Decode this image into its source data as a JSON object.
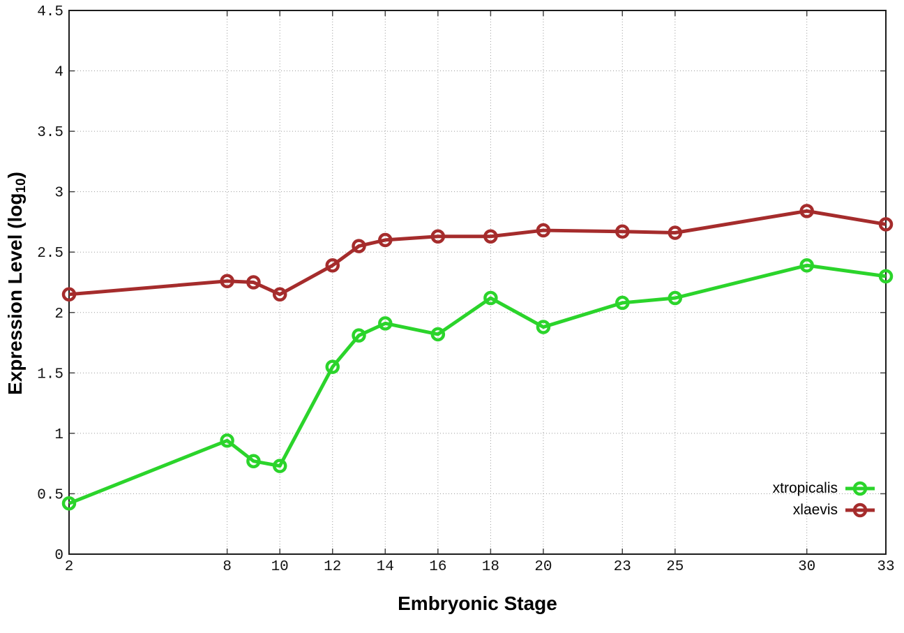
{
  "chart_data": {
    "type": "line",
    "title": "",
    "xlabel": "Embryonic Stage",
    "ylabel": {
      "prefix": "Expression Level (log",
      "subscript": "10",
      "suffix": ")"
    },
    "x_values": [
      2,
      8,
      9,
      10,
      12,
      13,
      14,
      16,
      18,
      20,
      23,
      25,
      30,
      33
    ],
    "x_ticks": [
      2,
      8,
      10,
      12,
      14,
      16,
      18,
      20,
      23,
      25,
      30,
      33
    ],
    "y_ticks": [
      0,
      0.5,
      1,
      1.5,
      2,
      2.5,
      3,
      3.5,
      4,
      4.5
    ],
    "xlim": [
      2,
      33
    ],
    "ylim": [
      0,
      4.5
    ],
    "grid": "dotted",
    "legend_position": "inside-bottom-right",
    "series": [
      {
        "name": "xtropicalis",
        "color": "#2bd42b",
        "values": [
          0.42,
          0.94,
          0.77,
          0.73,
          1.55,
          1.81,
          1.91,
          1.82,
          2.12,
          1.88,
          2.08,
          2.12,
          2.39,
          2.3
        ]
      },
      {
        "name": "xlaevis",
        "color": "#a52c2c",
        "values": [
          2.15,
          2.26,
          2.25,
          2.15,
          2.39,
          2.55,
          2.6,
          2.63,
          2.63,
          2.68,
          2.67,
          2.66,
          2.84,
          2.73
        ]
      }
    ],
    "style": {
      "frame_color": "#1c1c1c",
      "grid_color": "#9a9a9a",
      "tick_label_color": "#111111",
      "background": "#ffffff"
    }
  }
}
